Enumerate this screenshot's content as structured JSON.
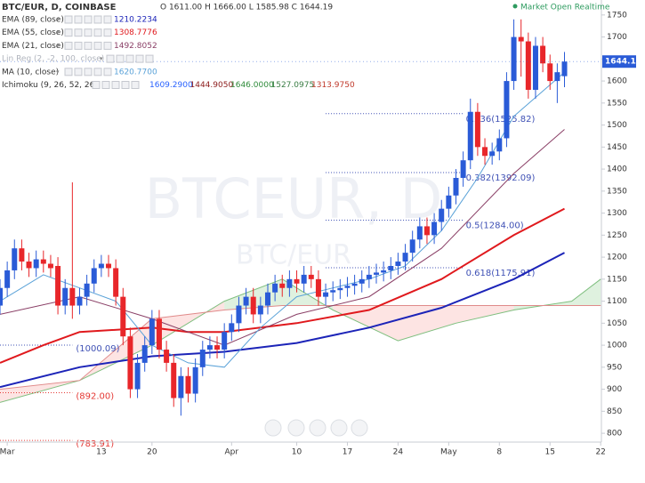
{
  "chart_data": {
    "type": "candlestick",
    "title": "BTC/EUR, D, COINBASE",
    "ohlc_readout": "O 1611.00 H 1666.00 L 1585.98 C 1644.19",
    "status": "Market Open Realtime",
    "watermark": "BTCEUR, D",
    "watermark_sub": "BTC/EUR",
    "up_color": "#2a5bd7",
    "down_color": "#e8262a",
    "x": [
      -1,
      0,
      1,
      2,
      3,
      4,
      5,
      6,
      7,
      8,
      9,
      10,
      11,
      12,
      13,
      14,
      15,
      16,
      17,
      18,
      19,
      20,
      21,
      22,
      23,
      24,
      25,
      26,
      27,
      28,
      29,
      30,
      31,
      32,
      33,
      34,
      35,
      36,
      37,
      38,
      39,
      40,
      41,
      42,
      43,
      44,
      45,
      46,
      47,
      48,
      49,
      50,
      51,
      52,
      53,
      54,
      55,
      56,
      57,
      58,
      59,
      60,
      61,
      62,
      63,
      64,
      65,
      66,
      67,
      68,
      69,
      70,
      71,
      72,
      73,
      74,
      75,
      76,
      77
    ],
    "open": [
      1090,
      1130,
      1170,
      1220,
      1190,
      1175,
      1195,
      1185,
      1180,
      1090,
      1130,
      1090,
      1110,
      1140,
      1175,
      1185,
      1175,
      1110,
      1020,
      900,
      960,
      1000,
      1060,
      990,
      960,
      880,
      930,
      890,
      950,
      990,
      1000,
      990,
      1030,
      1050,
      1090,
      1110,
      1070,
      1090,
      1120,
      1140,
      1130,
      1150,
      1140,
      1160,
      1150,
      1110,
      1120,
      1125,
      1130,
      1135,
      1140,
      1150,
      1160,
      1165,
      1170,
      1180,
      1190,
      1210,
      1240,
      1270,
      1250,
      1280,
      1310,
      1340,
      1380,
      1420,
      1530,
      1450,
      1430,
      1440,
      1470,
      1600,
      1700,
      1690,
      1580,
      1680,
      1640,
      1600,
      1611
    ],
    "high": [
      1150,
      1190,
      1240,
      1240,
      1210,
      1215,
      1215,
      1205,
      1200,
      1150,
      1370,
      1130,
      1160,
      1195,
      1205,
      1205,
      1195,
      1130,
      1040,
      980,
      1020,
      1080,
      1080,
      1010,
      980,
      950,
      950,
      970,
      1010,
      1020,
      1020,
      1050,
      1070,
      1110,
      1130,
      1130,
      1110,
      1140,
      1160,
      1160,
      1170,
      1170,
      1180,
      1180,
      1170,
      1140,
      1145,
      1150,
      1155,
      1160,
      1170,
      1180,
      1185,
      1190,
      1200,
      1210,
      1230,
      1260,
      1290,
      1290,
      1300,
      1330,
      1360,
      1400,
      1440,
      1560,
      1550,
      1470,
      1460,
      1490,
      1620,
      1740,
      1740,
      1710,
      1700,
      1700,
      1660,
      1640,
      1666
    ],
    "low": [
      1070,
      1110,
      1150,
      1170,
      1155,
      1155,
      1165,
      1155,
      1070,
      1070,
      1060,
      1070,
      1090,
      1120,
      1155,
      1155,
      1090,
      1000,
      880,
      880,
      940,
      980,
      970,
      940,
      860,
      840,
      870,
      870,
      930,
      970,
      970,
      970,
      1010,
      1030,
      1070,
      1050,
      1050,
      1070,
      1100,
      1110,
      1110,
      1120,
      1120,
      1130,
      1090,
      1090,
      1100,
      1105,
      1110,
      1115,
      1120,
      1130,
      1140,
      1145,
      1150,
      1160,
      1170,
      1190,
      1220,
      1230,
      1230,
      1260,
      1290,
      1320,
      1360,
      1400,
      1430,
      1410,
      1410,
      1420,
      1450,
      1580,
      1610,
      1560,
      1560,
      1620,
      1580,
      1550,
      1585.98
    ],
    "close": [
      1130,
      1170,
      1220,
      1190,
      1175,
      1195,
      1185,
      1175,
      1090,
      1130,
      1090,
      1110,
      1140,
      1175,
      1185,
      1175,
      1110,
      1020,
      900,
      960,
      1000,
      1060,
      990,
      960,
      880,
      930,
      890,
      950,
      990,
      1000,
      990,
      1030,
      1050,
      1090,
      1110,
      1070,
      1090,
      1120,
      1140,
      1130,
      1150,
      1140,
      1160,
      1150,
      1110,
      1120,
      1125,
      1130,
      1135,
      1140,
      1150,
      1160,
      1165,
      1170,
      1180,
      1190,
      1210,
      1240,
      1270,
      1250,
      1280,
      1310,
      1340,
      1380,
      1420,
      1530,
      1450,
      1430,
      1440,
      1470,
      1600,
      1700,
      1690,
      1580,
      1680,
      1640,
      1600,
      1620,
      1644.19
    ],
    "indicators": [
      {
        "name": "EMA (89, close)",
        "readout": "1210.2234",
        "color": "#1c24b8",
        "width": 2,
        "x": [
          -1,
          10,
          20,
          30,
          40,
          50,
          60,
          70,
          77
        ],
        "values": [
          905,
          950,
          975,
          985,
          1005,
          1040,
          1085,
          1150,
          1210
        ]
      },
      {
        "name": "EMA (55, close)",
        "readout": "1308.7776",
        "color": "#e0191d",
        "width": 2,
        "x": [
          -1,
          5,
          10,
          20,
          25,
          30,
          40,
          50,
          60,
          70,
          77
        ],
        "values": [
          960,
          1000,
          1030,
          1040,
          1030,
          1030,
          1050,
          1080,
          1150,
          1250,
          1310
        ]
      },
      {
        "name": "EMA (21, close)",
        "readout": "1492.8052",
        "color": "#8a3f66",
        "width": 1,
        "x": [
          -1,
          10,
          20,
          30,
          40,
          50,
          60,
          70,
          77
        ],
        "values": [
          1070,
          1110,
          1060,
          1000,
          1070,
          1110,
          1220,
          1390,
          1490
        ]
      },
      {
        "name": "Lin Reg (2, -2, 100, close)",
        "muted": true
      },
      {
        "name": "MA (10, close)",
        "readout": "1620.7700",
        "color": "#5aa2d8",
        "width": 1,
        "x": [
          -1,
          5,
          10,
          15,
          20,
          25,
          30,
          35,
          40,
          45,
          50,
          55,
          60,
          65,
          70,
          77
        ],
        "values": [
          1100,
          1160,
          1130,
          1100,
          1000,
          960,
          950,
          1040,
          1110,
          1130,
          1150,
          1180,
          1260,
          1380,
          1520,
          1620
        ]
      }
    ],
    "ichimoku": {
      "name": "Ichimoku (9, 26, 52, 26)",
      "readouts": [
        {
          "text": "1609.2900",
          "color": "#2962ff"
        },
        {
          "text": "1444.9050",
          "color": "#8b1a1a"
        },
        {
          "text": "1646.0000",
          "color": "#2e8b3a"
        },
        {
          "text": "1527.0975",
          "color": "#3a7d44"
        },
        {
          "text": "1313.9750",
          "color": "#c0392b"
        }
      ],
      "x": [
        -1,
        10,
        20,
        30,
        38,
        45,
        54,
        62,
        70,
        78,
        82
      ],
      "span_a": [
        870,
        920,
        1000,
        1100,
        1150,
        1080,
        1010,
        1050,
        1080,
        1100,
        1150
      ],
      "span_b": [
        900,
        920,
        1060,
        1080,
        1090,
        1090,
        1090,
        1090,
        1090,
        1090,
        1090
      ],
      "span_a_color": "#7fbf7f",
      "span_b_color": "#e08a8a",
      "cloud_up": "rgba(76,175,80,0.18)",
      "cloud_down": "rgba(244,67,54,0.14)"
    },
    "fib_levels": [
      {
        "label": "0.236(1525.82)",
        "value": 1525.82,
        "x": [
          44,
          63
        ],
        "color": "#3f51b5"
      },
      {
        "label": "0.382(1392.09)",
        "value": 1392.09,
        "x": [
          44,
          63
        ],
        "color": "#3f51b5"
      },
      {
        "label": "0.5(1284.00)",
        "value": 1284.0,
        "x": [
          44,
          63
        ],
        "color": "#3f51b5"
      },
      {
        "label": "0.618(1175.91)",
        "value": 1175.91,
        "x": [
          44,
          63
        ],
        "color": "#3f51b5"
      },
      {
        "label": "(1000.09)",
        "value": 1000.09,
        "x": [
          -1,
          9
        ],
        "color": "#3f51b5"
      },
      {
        "label": "(892.00)",
        "value": 892.0,
        "x": [
          -1,
          9
        ],
        "color": "#e53935"
      },
      {
        "label": "(783.91)",
        "value": 783.91,
        "x": [
          -1,
          9
        ],
        "color": "#e53935"
      }
    ],
    "xlim": [
      -1,
      82.1
    ],
    "ylim": [
      780,
      1784
    ],
    "xticks": [
      {
        "value": 0,
        "label": "Mar"
      },
      13,
      20,
      {
        "value": 31,
        "label": "Apr"
      },
      {
        "value": 40,
        "label": "10"
      },
      {
        "value": 47,
        "label": "17"
      },
      {
        "value": 54,
        "label": "24"
      },
      {
        "value": 61,
        "label": "May"
      },
      {
        "value": 68,
        "label": "8"
      },
      {
        "value": 75,
        "label": "15"
      },
      {
        "value": 82,
        "label": "22"
      }
    ],
    "yticks": [
      800,
      850,
      900,
      950,
      1000,
      1050,
      1100,
      1150,
      1200,
      1250,
      1300,
      1350,
      1400,
      1450,
      1500,
      1550,
      1600,
      1650,
      1700,
      1750
    ]
  }
}
